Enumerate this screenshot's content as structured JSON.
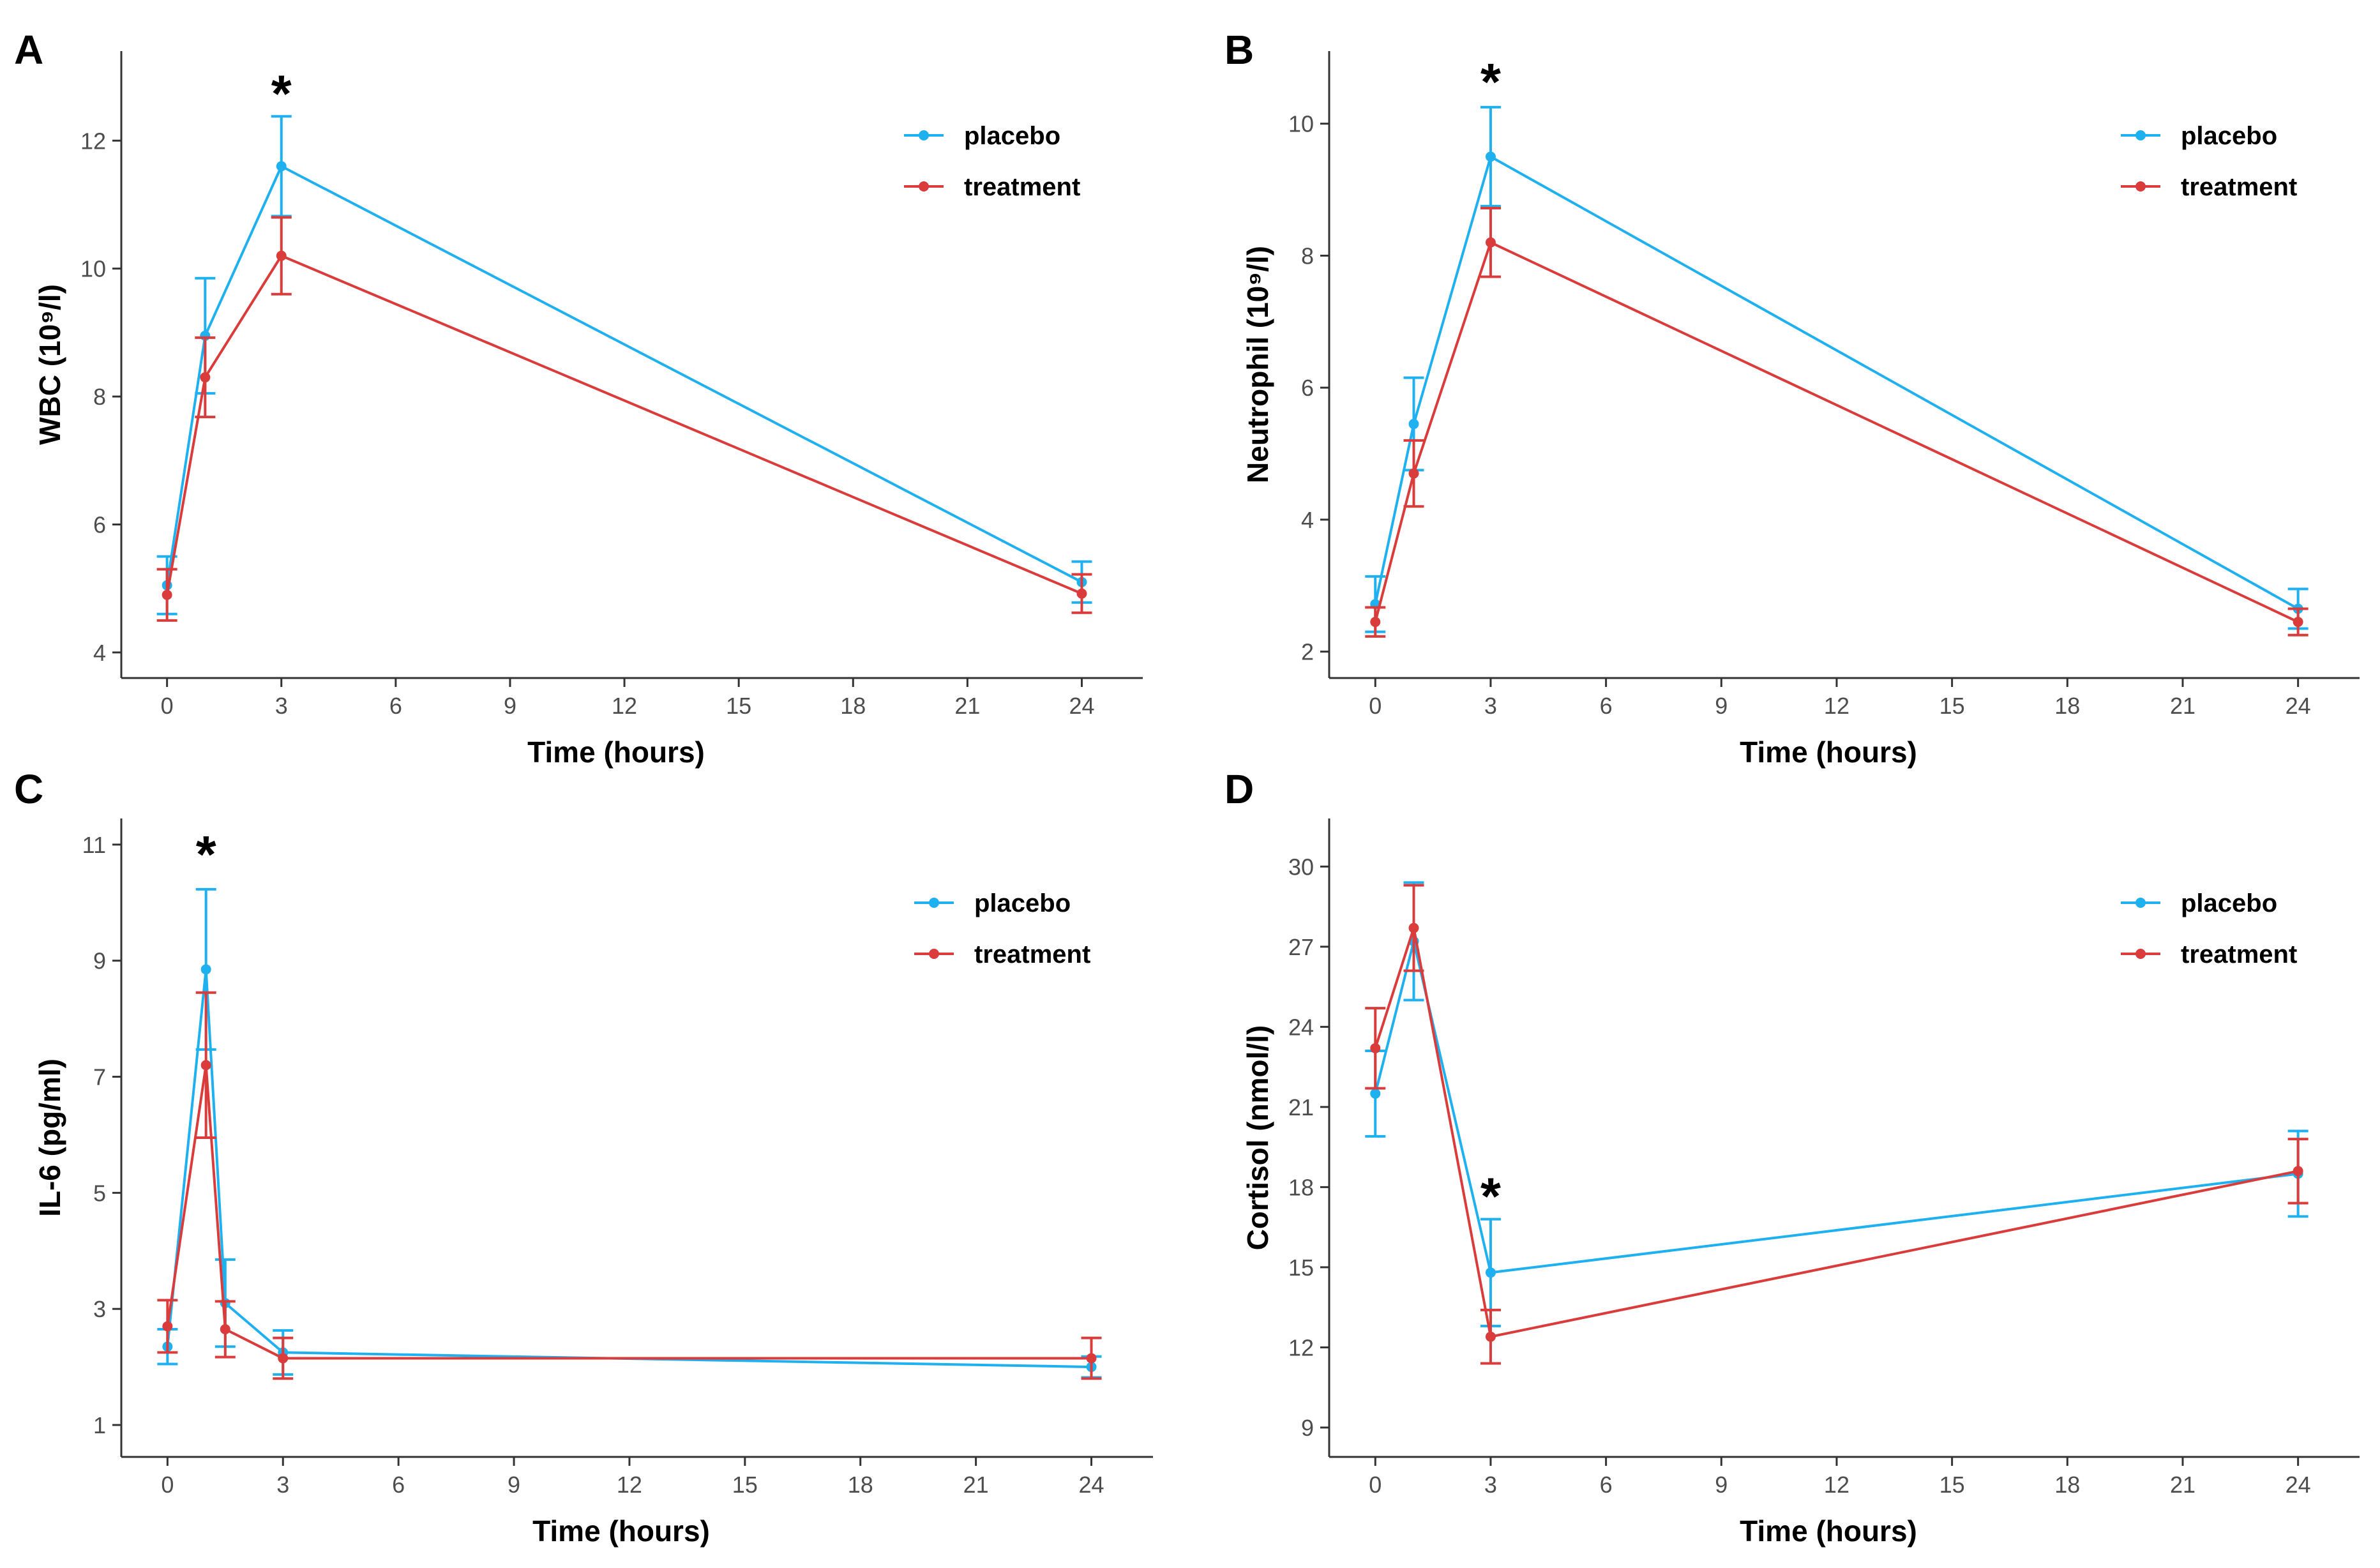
{
  "colors": {
    "placebo": "#1FB0F0",
    "treatment": "#DA3B3B",
    "axis": "#333333",
    "tick_text": "#4d4d4d"
  },
  "chart_data": [
    {
      "panel": "A",
      "type": "line",
      "xlabel": "Time (hours)",
      "ylabel": "WBC (10⁹/l)",
      "xlim": [
        -1.2,
        25.6
      ],
      "ylim": [
        3.6,
        13.4
      ],
      "xticks": [
        0,
        3,
        6,
        9,
        12,
        15,
        18,
        21,
        24
      ],
      "yticks": [
        4,
        6,
        8,
        10,
        12
      ],
      "legend": {
        "position": "top-right",
        "entries": [
          "placebo",
          "treatment"
        ]
      },
      "significance": [
        {
          "x": 3,
          "y": 12.75,
          "label": "*"
        }
      ],
      "series": [
        {
          "name": "placebo",
          "color": "#1FB0F0",
          "x": [
            0,
            1,
            3,
            24
          ],
          "y": [
            5.05,
            8.95,
            11.6,
            5.1
          ],
          "err": [
            0.45,
            0.9,
            0.78,
            0.32
          ]
        },
        {
          "name": "treatment",
          "color": "#DA3B3B",
          "x": [
            0,
            1,
            3,
            24
          ],
          "y": [
            4.9,
            8.3,
            10.2,
            4.92
          ],
          "err": [
            0.4,
            0.62,
            0.6,
            0.3
          ]
        }
      ]
    },
    {
      "panel": "B",
      "type": "line",
      "xlabel": "Time (hours)",
      "ylabel": "Neutrophil (10⁹/l)",
      "xlim": [
        -1.2,
        25.6
      ],
      "ylim": [
        1.6,
        11.1
      ],
      "xticks": [
        0,
        3,
        6,
        9,
        12,
        15,
        18,
        21,
        24
      ],
      "yticks": [
        2,
        4,
        6,
        8,
        10
      ],
      "legend": {
        "position": "top-right",
        "entries": [
          "placebo",
          "treatment"
        ]
      },
      "significance": [
        {
          "x": 3,
          "y": 10.65,
          "label": "*"
        }
      ],
      "series": [
        {
          "name": "placebo",
          "color": "#1FB0F0",
          "x": [
            0,
            1,
            3,
            24
          ],
          "y": [
            2.72,
            5.45,
            9.5,
            2.65
          ],
          "err": [
            0.42,
            0.7,
            0.75,
            0.3
          ]
        },
        {
          "name": "treatment",
          "color": "#DA3B3B",
          "x": [
            0,
            1,
            3,
            24
          ],
          "y": [
            2.45,
            4.7,
            8.2,
            2.45
          ],
          "err": [
            0.22,
            0.5,
            0.52,
            0.2
          ]
        }
      ]
    },
    {
      "panel": "C",
      "type": "line",
      "xlabel": "Time (hours)",
      "ylabel": "IL-6 (pg/ml)",
      "xlim": [
        -1.2,
        25.6
      ],
      "ylim": [
        0.45,
        11.45
      ],
      "xticks": [
        0,
        3,
        6,
        9,
        12,
        15,
        18,
        21,
        24
      ],
      "yticks": [
        1,
        3,
        5,
        7,
        9,
        11
      ],
      "legend": {
        "position": "top-right",
        "entries": [
          "placebo",
          "treatment"
        ]
      },
      "significance": [
        {
          "x": 1,
          "y": 10.85,
          "label": "*"
        }
      ],
      "series": [
        {
          "name": "placebo",
          "color": "#1FB0F0",
          "x": [
            0,
            1,
            1.5,
            3,
            24
          ],
          "y": [
            2.35,
            8.85,
            3.1,
            2.25,
            2.0
          ],
          "err": [
            0.3,
            1.38,
            0.75,
            0.38,
            0.18
          ]
        },
        {
          "name": "treatment",
          "color": "#DA3B3B",
          "x": [
            0,
            1,
            1.5,
            3,
            24
          ],
          "y": [
            2.7,
            7.2,
            2.65,
            2.15,
            2.15
          ],
          "err": [
            0.45,
            1.25,
            0.48,
            0.35,
            0.35
          ]
        }
      ]
    },
    {
      "panel": "D",
      "type": "line",
      "xlabel": "Time (hours)",
      "ylabel": "Cortisol (nmol/l)",
      "xlim": [
        -1.2,
        25.6
      ],
      "ylim": [
        7.9,
        31.8
      ],
      "xticks": [
        0,
        3,
        6,
        9,
        12,
        15,
        18,
        21,
        24
      ],
      "yticks": [
        9,
        12,
        15,
        18,
        21,
        24,
        27,
        30
      ],
      "legend": {
        "position": "top-right",
        "entries": [
          "placebo",
          "treatment"
        ]
      },
      "significance": [
        {
          "x": 3,
          "y": 17.7,
          "label": "*"
        }
      ],
      "series": [
        {
          "name": "placebo",
          "color": "#1FB0F0",
          "x": [
            0,
            1,
            3,
            24
          ],
          "y": [
            21.5,
            27.2,
            14.8,
            18.5
          ],
          "err": [
            1.6,
            2.2,
            2.0,
            1.6
          ]
        },
        {
          "name": "treatment",
          "color": "#DA3B3B",
          "x": [
            0,
            1,
            3,
            24
          ],
          "y": [
            23.2,
            27.7,
            12.4,
            18.6
          ],
          "err": [
            1.5,
            1.6,
            1.0,
            1.2
          ]
        }
      ]
    }
  ]
}
